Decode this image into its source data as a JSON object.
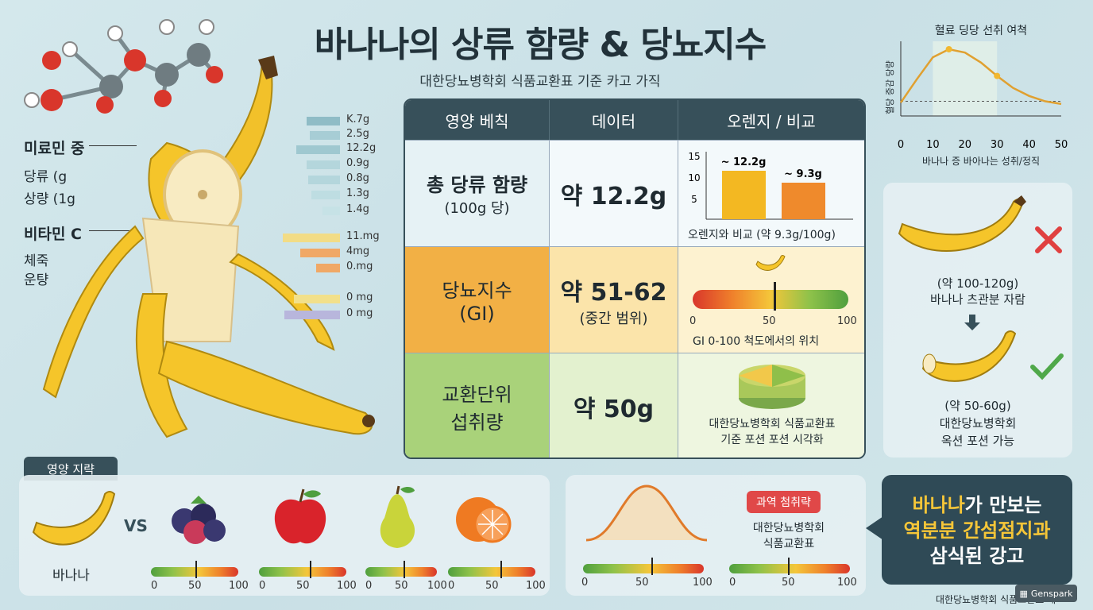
{
  "header": {
    "title": "바나나의 상류 함량 & 당뇨지수",
    "subtitle": "대한당뇨병학회 식품교환표 기준 카고 가직"
  },
  "left_labels": {
    "group1_title": "미료민 중",
    "group1_line1": "당류 (g",
    "group1_line2": "상량 (1g",
    "group2_title": "비타민 C",
    "group2_line1": "체죽",
    "group2_line2": "운턍"
  },
  "nutrient_values": [
    "K.7g",
    "2.5g",
    "12.2g",
    "0.9g",
    "0.8g",
    "1.3g",
    "1.4g",
    "11.mg",
    "4mg",
    "0.mg",
    "0 mg",
    "0 mg"
  ],
  "table": {
    "headers": [
      "영양 베칙",
      "데이터",
      "오렌지 / 비교"
    ],
    "row1": {
      "label1": "총 당류 함량",
      "label2": "(100g 당)",
      "value": "약 12.2g",
      "chart": {
        "y_ticks": [
          "15",
          "10",
          "5"
        ],
        "bar1_label": "~ 12.2g",
        "bar2_label": "~ 9.3g",
        "caption": "오렌지와 비교 (약 9.3g/100g)"
      }
    },
    "row2": {
      "label1": "당뇨지수",
      "label2": "(GI)",
      "value": "약 51-62",
      "value_sub": "(중간 범위)",
      "scale_ticks": [
        "0",
        "50",
        "100"
      ],
      "caption": "GI 0-100 척도에서의 위치"
    },
    "row3": {
      "label1": "교환단위",
      "label2": "섭취량",
      "value": "약 50g",
      "caption1": "대한당뇨병학회 식품교환표",
      "caption2": "기준 포션 포션 시각화"
    }
  },
  "chart_data": {
    "type": "line",
    "title": "혈료 딩당 선취 여쳑",
    "ylabel": "혈당 증감 당량",
    "xlabel": "바나나 증 바아나는 성취/정직",
    "x_ticks": [
      0,
      10,
      20,
      30,
      40,
      50
    ],
    "x": [
      0,
      5,
      10,
      15,
      20,
      25,
      30,
      35,
      40,
      45,
      50
    ],
    "y": [
      20,
      55,
      88,
      100,
      95,
      80,
      60,
      42,
      30,
      22,
      18
    ],
    "highlight_range": [
      10,
      30
    ]
  },
  "portion": {
    "top_label1": "(약 100-120g)",
    "top_label2": "바나나 츠관분 자람",
    "bottom_label1": "(약 50-60g)",
    "bottom_label2": "대한당뇨병학회",
    "bottom_label3": "옥션 포션 가능"
  },
  "comparison": {
    "tab": "영양 지략",
    "banana_label": "바나나",
    "vs": "VS",
    "scale_ticks": [
      "0",
      "50",
      "100"
    ]
  },
  "bottom_mid": {
    "badge": "과역 첨취략",
    "line1": "대한당뇨병학회",
    "line2": "식품교환표",
    "scale_ticks": [
      "0",
      "50",
      "100"
    ]
  },
  "callout": {
    "part1": "바나나",
    "part2": "가 만보는",
    "line2": "역분분 간섬점지과",
    "line3": "삼식된 강고"
  },
  "footer": {
    "credit": "대한당뇨병학회 식품교환표 제",
    "brand": "Genspark"
  },
  "colors": {
    "accent_dark": "#37505a",
    "banana": "#f5c52a",
    "orange": "#ef8a2c",
    "green": "#4f9f3e",
    "red": "#d9362b"
  }
}
